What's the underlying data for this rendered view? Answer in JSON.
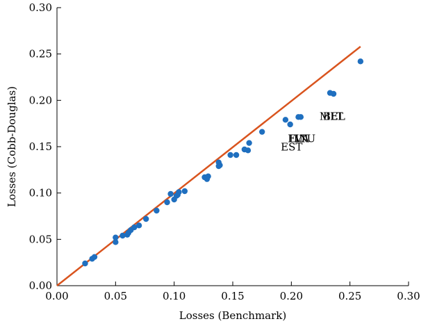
{
  "chart_data": {
    "type": "scatter",
    "title": "",
    "xlabel": "Losses (Benchmark)",
    "ylabel": "Losses (Cobb-Douglas)",
    "xlim": [
      0,
      0.3
    ],
    "ylim": [
      0,
      0.3
    ],
    "xticks": [
      "0.00",
      "0.05",
      "0.10",
      "0.15",
      "0.20",
      "0.25",
      "0.30"
    ],
    "yticks": [
      "0.00",
      "0.05",
      "0.10",
      "0.15",
      "0.20",
      "0.25",
      "0.30"
    ],
    "grid": false,
    "colors": {
      "points": "#1f6fbf",
      "line": "#d9541e"
    },
    "fit_line": {
      "x": [
        0,
        0.259
      ],
      "y": [
        0,
        0.258
      ]
    },
    "points": [
      {
        "x": 0.024,
        "y": 0.024
      },
      {
        "x": 0.03,
        "y": 0.029
      },
      {
        "x": 0.032,
        "y": 0.031
      },
      {
        "x": 0.05,
        "y": 0.047
      },
      {
        "x": 0.05,
        "y": 0.052
      },
      {
        "x": 0.056,
        "y": 0.054
      },
      {
        "x": 0.06,
        "y": 0.055
      },
      {
        "x": 0.061,
        "y": 0.057
      },
      {
        "x": 0.063,
        "y": 0.06
      },
      {
        "x": 0.066,
        "y": 0.063
      },
      {
        "x": 0.07,
        "y": 0.065
      },
      {
        "x": 0.076,
        "y": 0.072
      },
      {
        "x": 0.085,
        "y": 0.081
      },
      {
        "x": 0.094,
        "y": 0.09
      },
      {
        "x": 0.097,
        "y": 0.099
      },
      {
        "x": 0.1,
        "y": 0.093
      },
      {
        "x": 0.102,
        "y": 0.097
      },
      {
        "x": 0.104,
        "y": 0.101
      },
      {
        "x": 0.103,
        "y": 0.098
      },
      {
        "x": 0.109,
        "y": 0.102
      },
      {
        "x": 0.126,
        "y": 0.117
      },
      {
        "x": 0.128,
        "y": 0.115
      },
      {
        "x": 0.129,
        "y": 0.118
      },
      {
        "x": 0.138,
        "y": 0.129
      },
      {
        "x": 0.139,
        "y": 0.13
      },
      {
        "x": 0.138,
        "y": 0.133
      },
      {
        "x": 0.148,
        "y": 0.141
      },
      {
        "x": 0.153,
        "y": 0.141
      },
      {
        "x": 0.16,
        "y": 0.147
      },
      {
        "x": 0.163,
        "y": 0.146
      },
      {
        "x": 0.164,
        "y": 0.154
      },
      {
        "x": 0.175,
        "y": 0.166
      },
      {
        "x": 0.195,
        "y": 0.179
      },
      {
        "x": 0.199,
        "y": 0.174
      },
      {
        "x": 0.206,
        "y": 0.182
      },
      {
        "x": 0.208,
        "y": 0.182
      },
      {
        "x": 0.233,
        "y": 0.208
      },
      {
        "x": 0.236,
        "y": 0.207
      },
      {
        "x": 0.259,
        "y": 0.242
      }
    ],
    "annotations": [
      {
        "text": "MLT",
        "x": 0.224,
        "y": 0.179
      },
      {
        "text": "BEL",
        "x": 0.227,
        "y": 0.179
      },
      {
        "text": "FIN",
        "x": 0.197,
        "y": 0.155
      },
      {
        "text": "LVA",
        "x": 0.198,
        "y": 0.155
      },
      {
        "text": "LTU",
        "x": 0.202,
        "y": 0.155
      },
      {
        "text": "EST",
        "x": 0.191,
        "y": 0.146
      }
    ]
  }
}
